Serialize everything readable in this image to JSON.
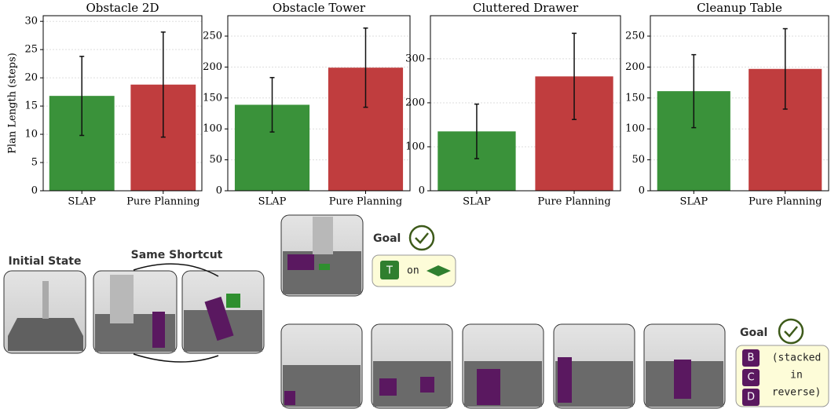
{
  "chart_data": [
    {
      "type": "bar",
      "title": "Obstacle 2D",
      "ylabel": "Plan Length (steps)",
      "categories": [
        "SLAP",
        "Pure Planning"
      ],
      "values": [
        16.8,
        18.8
      ],
      "errors": [
        7.0,
        9.3
      ],
      "colors": [
        "#3a923a",
        "#c03d3e"
      ],
      "ylim": [
        0,
        31
      ],
      "yticks": [
        0,
        5,
        10,
        15,
        20,
        25,
        30
      ],
      "grid": true
    },
    {
      "type": "bar",
      "title": "Obstacle Tower",
      "categories": [
        "SLAP",
        "Pure Planning"
      ],
      "values": [
        139,
        199
      ],
      "errors": [
        44,
        64
      ],
      "colors": [
        "#3a923a",
        "#c03d3e"
      ],
      "ylim": [
        0,
        283
      ],
      "yticks": [
        0,
        50,
        100,
        150,
        200,
        250
      ],
      "grid": true
    },
    {
      "type": "bar",
      "title": "Cluttered Drawer",
      "categories": [
        "SLAP",
        "Pure Planning"
      ],
      "values": [
        135,
        260
      ],
      "errors": [
        62,
        98
      ],
      "colors": [
        "#3a923a",
        "#c03d3e"
      ],
      "ylim": [
        0,
        398
      ],
      "yticks": [
        0,
        100,
        200,
        300
      ],
      "grid": true
    },
    {
      "type": "bar",
      "title": "Cleanup Table",
      "categories": [
        "SLAP",
        "Pure Planning"
      ],
      "values": [
        161,
        197
      ],
      "errors": [
        59,
        65
      ],
      "colors": [
        "#3a923a",
        "#c03d3e"
      ],
      "ylim": [
        0,
        283
      ],
      "yticks": [
        0,
        50,
        100,
        150,
        200,
        250
      ],
      "grid": true
    }
  ],
  "panels": {
    "initial_state": "Initial State",
    "shortcut": "Same Shortcut",
    "goal_1": {
      "label": "Goal",
      "block": "T",
      "text": "on"
    },
    "goal_2": {
      "label": "Goal",
      "blocks": [
        "B",
        "C",
        "D"
      ],
      "lines": [
        "(stacked",
        "in",
        "reverse)"
      ]
    }
  }
}
